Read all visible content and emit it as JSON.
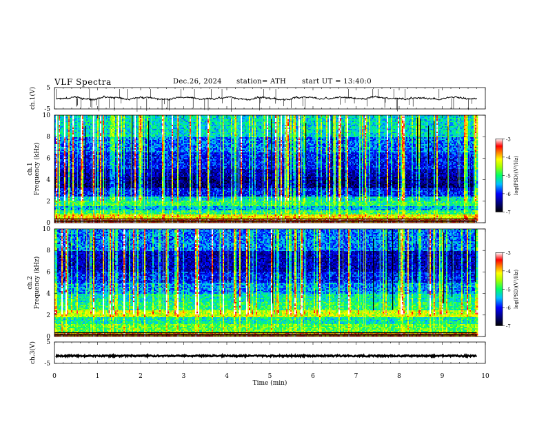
{
  "header": {
    "title": "VLF Spectra",
    "date": "Dec.26, 2024",
    "station": "station= ATH",
    "start_time": "start UT =  13:40:0"
  },
  "chart_data": [
    {
      "type": "line",
      "panel": "ch1-waveform",
      "ylabel": "ch.1(V)",
      "ylim": [
        -5,
        5
      ],
      "yticks": [
        "5",
        "-5"
      ],
      "baseline": 0,
      "color": "#000000"
    },
    {
      "type": "heatmap",
      "panel": "ch1-spectrogram",
      "ylabel": "ch.1\nFrequency (kHz)",
      "ylim": [
        0,
        10
      ],
      "yticks": [
        "0",
        "2",
        "4",
        "6",
        "8",
        "10"
      ],
      "colorbar": {
        "label": "log(PSD)(V²/Hz)",
        "range": [
          -7,
          -3
        ],
        "ticks": [
          "-3",
          "-4",
          "-5",
          "-6",
          "-7"
        ]
      },
      "bands": [
        {
          "from": 0,
          "to": 0.4,
          "level": -3.6
        },
        {
          "from": 0.4,
          "to": 0.8,
          "level": -4.2
        },
        {
          "from": 0.8,
          "to": 1.2,
          "level": -5.0
        },
        {
          "from": 1.2,
          "to": 1.6,
          "level": -5.5
        },
        {
          "from": 1.6,
          "to": 2.0,
          "level": -5.0
        },
        {
          "from": 2.0,
          "to": 2.4,
          "level": -5.3
        },
        {
          "from": 2.4,
          "to": 3.2,
          "level": -6.0
        },
        {
          "from": 3.2,
          "to": 4.2,
          "level": -6.5
        },
        {
          "from": 4.2,
          "to": 5.0,
          "level": -6.3
        },
        {
          "from": 5.0,
          "to": 6.5,
          "level": -6.0
        },
        {
          "from": 6.5,
          "to": 8.0,
          "level": -5.7
        },
        {
          "from": 8.0,
          "to": 10.0,
          "level": -5.3
        }
      ]
    },
    {
      "type": "heatmap",
      "panel": "ch2-spectrogram",
      "ylabel": "ch.2\nFrequency (kHz)",
      "ylim": [
        0,
        10
      ],
      "yticks": [
        "0",
        "2",
        "4",
        "6",
        "8",
        "10"
      ],
      "colorbar": {
        "label": "log(PSD)(V²/Hz)",
        "range": [
          -7,
          -3
        ],
        "ticks": [
          "-3",
          "-4",
          "-5",
          "-6",
          "-7"
        ]
      },
      "bands": [
        {
          "from": 0,
          "to": 0.4,
          "level": -3.8
        },
        {
          "from": 0.4,
          "to": 1.2,
          "level": -4.8
        },
        {
          "from": 1.2,
          "to": 1.8,
          "level": -5.2
        },
        {
          "from": 1.8,
          "to": 2.4,
          "level": -4.4
        },
        {
          "from": 2.4,
          "to": 3.2,
          "level": -5.0
        },
        {
          "from": 3.2,
          "to": 4.0,
          "level": -5.2
        },
        {
          "from": 4.0,
          "to": 5.0,
          "level": -5.6
        },
        {
          "from": 5.0,
          "to": 6.0,
          "level": -6.0
        },
        {
          "from": 6.0,
          "to": 8.0,
          "level": -6.3
        },
        {
          "from": 8.0,
          "to": 10.0,
          "level": -5.7
        }
      ]
    },
    {
      "type": "line",
      "panel": "ch3-waveform",
      "ylabel": "ch.3(V)",
      "ylim": [
        -5,
        5
      ],
      "yticks": [
        "5",
        "-5"
      ],
      "baseline": -1.5,
      "color": "#000000"
    }
  ],
  "xaxis": {
    "label": "Time (min)",
    "range": [
      0,
      10
    ],
    "ticks": [
      "0",
      "1",
      "2",
      "3",
      "4",
      "5",
      "6",
      "7",
      "8",
      "9",
      "10"
    ]
  },
  "data_end_min": 9.8
}
